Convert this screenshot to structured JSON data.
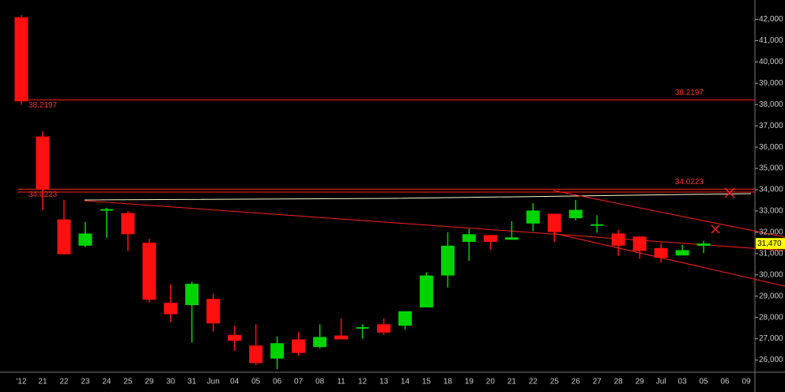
{
  "chart_data": {
    "type": "candlestick",
    "categories": [
      "'12",
      "21",
      "22",
      "23",
      "24",
      "25",
      "29",
      "30",
      "31",
      "Jun",
      "04",
      "05",
      "06",
      "07",
      "08",
      "11",
      "12",
      "13",
      "14",
      "15",
      "18",
      "19",
      "20",
      "21",
      "22",
      "25",
      "26",
      "27",
      "28",
      "29",
      "Jul",
      "03",
      "05",
      "06",
      "09"
    ],
    "open": [
      42100,
      36500,
      32600,
      31370,
      33000,
      32900,
      31510,
      28690,
      28580,
      28870,
      27180,
      26680,
      26070,
      26970,
      26610,
      27150,
      27510,
      27680,
      27610,
      28470,
      29970,
      31550,
      31870,
      31650,
      32410,
      32870,
      32660,
      32340,
      31940,
      31800,
      31260,
      30910,
      31370,
      null,
      null
    ],
    "high": [
      42200,
      36740,
      33520,
      32480,
      33150,
      33000,
      31700,
      29550,
      29680,
      29120,
      27610,
      27680,
      27110,
      27330,
      27680,
      27960,
      27680,
      27960,
      28290,
      30120,
      32010,
      32160,
      31870,
      32520,
      33370,
      32870,
      33520,
      32800,
      32120,
      31800,
      31500,
      31410,
      31600,
      null,
      null
    ],
    "low": [
      37990,
      33050,
      30950,
      31300,
      31730,
      31120,
      28690,
      27790,
      26820,
      27330,
      26430,
      25760,
      25570,
      26190,
      26540,
      26970,
      27000,
      27180,
      27430,
      28470,
      29400,
      30650,
      31190,
      31650,
      32050,
      31550,
      32550,
      31980,
      30900,
      30760,
      30580,
      30910,
      31020,
      null,
      null
    ],
    "close": [
      38150,
      34000,
      30970,
      31940,
      33050,
      31910,
      28830,
      28150,
      29580,
      27720,
      26900,
      25860,
      26790,
      26330,
      27080,
      26970,
      27510,
      27290,
      28290,
      29970,
      31370,
      31910,
      31550,
      31760,
      33020,
      32010,
      33050,
      32340,
      31370,
      31120,
      30800,
      31160,
      31470,
      null,
      null
    ],
    "up_color": "#00d400",
    "down_color": "#ff1010",
    "ylim": [
      25500,
      42300
    ],
    "yticks": [
      {
        "value": 26000,
        "label": "26,000"
      },
      {
        "value": 27000,
        "label": "27,000"
      },
      {
        "value": 28000,
        "label": "28,000"
      },
      {
        "value": 29000,
        "label": "29,000"
      },
      {
        "value": 30000,
        "label": "30,000"
      },
      {
        "value": 31000,
        "label": "31,000"
      },
      {
        "value": 32000,
        "label": "32,000"
      },
      {
        "value": 33000,
        "label": "33,000"
      },
      {
        "value": 34000,
        "label": "34,000"
      },
      {
        "value": 35000,
        "label": "35,000"
      },
      {
        "value": 36000,
        "label": "36,000"
      },
      {
        "value": 37000,
        "label": "37,000"
      },
      {
        "value": 38000,
        "label": "38,000"
      },
      {
        "value": 39000,
        "label": "39,000"
      },
      {
        "value": 40000,
        "label": "40,000"
      },
      {
        "value": 41000,
        "label": "41,000"
      },
      {
        "value": 42000,
        "label": "42,000"
      }
    ],
    "levels": [
      {
        "value": 38219.7,
        "label": "38.2197"
      },
      {
        "value": 34022.3,
        "label": "34.0223"
      }
    ],
    "last_price": {
      "value": 31470,
      "label": "31,470"
    }
  }
}
